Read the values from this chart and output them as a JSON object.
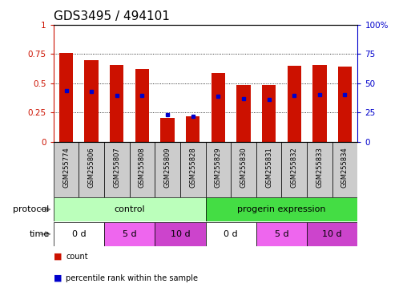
{
  "title": "GDS3495 / 494101",
  "samples": [
    "GSM255774",
    "GSM255806",
    "GSM255807",
    "GSM255808",
    "GSM255809",
    "GSM255828",
    "GSM255829",
    "GSM255830",
    "GSM255831",
    "GSM255832",
    "GSM255833",
    "GSM255834"
  ],
  "red_values": [
    0.755,
    0.695,
    0.655,
    0.62,
    0.205,
    0.215,
    0.585,
    0.485,
    0.485,
    0.65,
    0.655,
    0.645
  ],
  "blue_values": [
    0.435,
    0.43,
    0.395,
    0.395,
    0.23,
    0.215,
    0.385,
    0.365,
    0.36,
    0.395,
    0.4,
    0.4
  ],
  "ylim": [
    0,
    1.0
  ],
  "yticks_left": [
    0,
    0.25,
    0.5,
    0.75,
    1.0
  ],
  "yticks_right_vals": [
    0,
    25,
    50,
    75,
    100
  ],
  "yticks_right_labels": [
    "0",
    "25",
    "50",
    "75",
    "100%"
  ],
  "bar_color": "#cc1100",
  "blue_color": "#0000cc",
  "bar_width": 0.55,
  "protocol_groups": [
    {
      "label": "control",
      "start": 0,
      "end": 6,
      "color": "#bbffbb"
    },
    {
      "label": "progerin expression",
      "start": 6,
      "end": 12,
      "color": "#44dd44"
    }
  ],
  "time_groups": [
    {
      "label": "0 d",
      "start": 0,
      "end": 2,
      "color": "#ffffff"
    },
    {
      "label": "5 d",
      "start": 2,
      "end": 4,
      "color": "#ee66ee"
    },
    {
      "label": "10 d",
      "start": 4,
      "end": 6,
      "color": "#dd44cc"
    },
    {
      "label": "0 d",
      "start": 6,
      "end": 8,
      "color": "#ffffff"
    },
    {
      "label": "5 d",
      "start": 8,
      "end": 10,
      "color": "#ee66ee"
    },
    {
      "label": "10 d",
      "start": 10,
      "end": 12,
      "color": "#dd44cc"
    }
  ],
  "sample_bg_color": "#cccccc",
  "tick_color_left": "#cc1100",
  "tick_color_right": "#0000cc",
  "title_fontsize": 11,
  "tick_fontsize": 7.5,
  "sample_fontsize": 6,
  "row_label_fontsize": 8,
  "legend_fontsize": 7
}
